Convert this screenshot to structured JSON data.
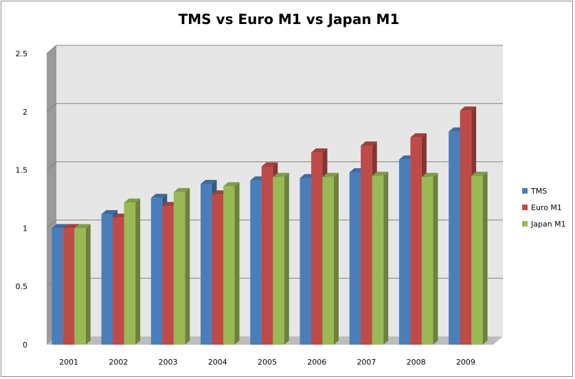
{
  "chart_data": {
    "type": "bar",
    "title": "TMS vs Euro M1 vs Japan M1",
    "xlabel": "",
    "ylabel": "",
    "categories": [
      "2001",
      "2002",
      "2003",
      "2004",
      "2005",
      "2006",
      "2007",
      "2008",
      "2009"
    ],
    "ylim": [
      0,
      2.5
    ],
    "yticks": [
      "0",
      "0.5",
      "1",
      "1.5",
      "2",
      "2.5"
    ],
    "grid": true,
    "legend": "right",
    "style": "3d-clustered-column",
    "series": [
      {
        "name": "TMS",
        "color": "#4a7ebb",
        "values": [
          1.0,
          1.12,
          1.26,
          1.38,
          1.41,
          1.43,
          1.48,
          1.59,
          1.83
        ]
      },
      {
        "name": "Euro M1",
        "color": "#be4b48",
        "values": [
          1.0,
          1.09,
          1.19,
          1.29,
          1.53,
          1.65,
          1.71,
          1.78,
          2.01
        ]
      },
      {
        "name": "Japan M1",
        "color": "#98b954",
        "values": [
          1.0,
          1.22,
          1.31,
          1.36,
          1.44,
          1.44,
          1.45,
          1.44,
          1.45
        ]
      }
    ]
  }
}
